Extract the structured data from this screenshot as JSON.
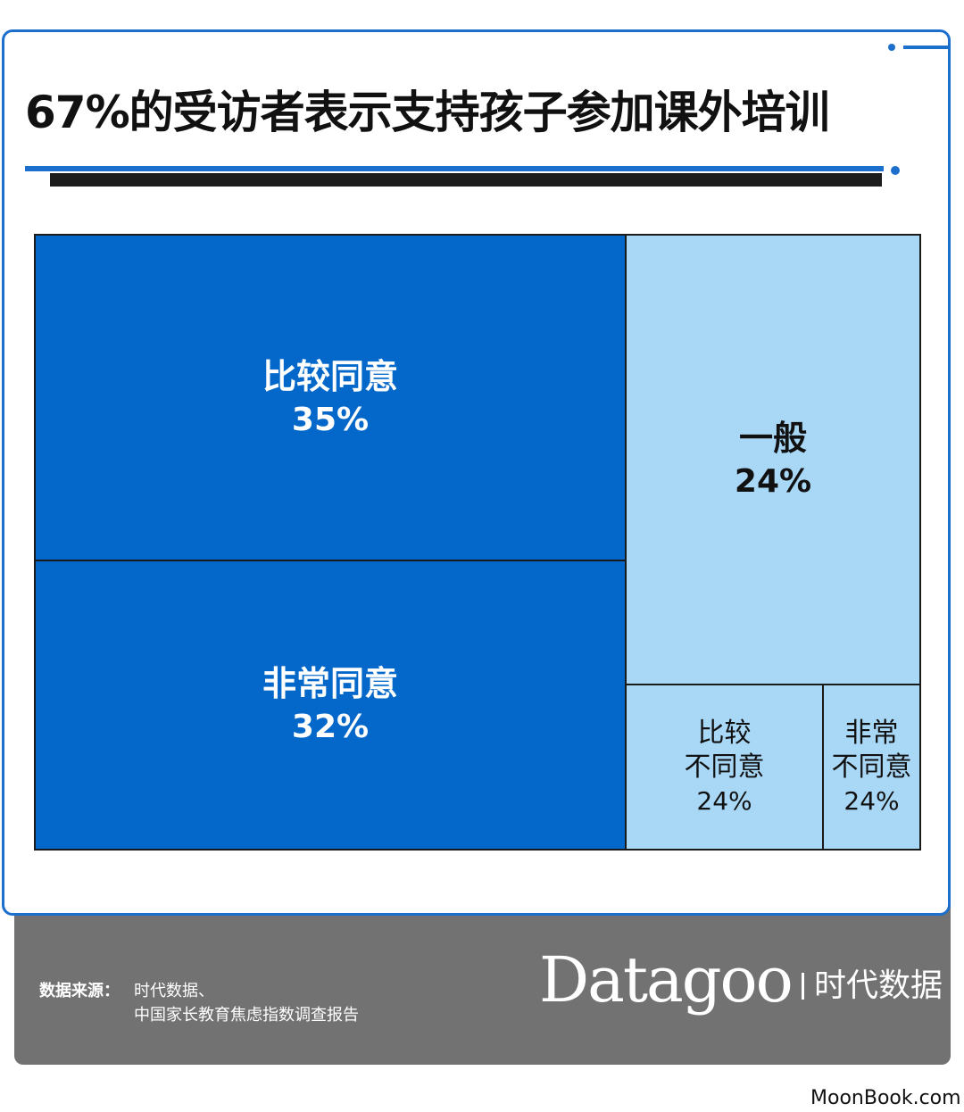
{
  "title": "67%的受访者表示支持孩子参加课外培训",
  "chart_data": {
    "type": "treemap",
    "title": "67%的受访者表示支持孩子参加课外培训",
    "unit": "%",
    "items": [
      {
        "label": "比较同意",
        "value": 35,
        "display": "35%"
      },
      {
        "label": "非常同意",
        "value": 32,
        "display": "32%"
      },
      {
        "label": "一般",
        "value": 24,
        "display": "24%"
      },
      {
        "label_line1": "比较",
        "label_line2": "不同意",
        "label": "比较不同意",
        "value": 24,
        "display": "24%"
      },
      {
        "label_line1": "非常",
        "label_line2": "不同意",
        "label": "非常不同意",
        "value": 24,
        "display": "24%"
      }
    ],
    "colors": {
      "agree": "#0368c9",
      "other": "#a9d8f7"
    }
  },
  "footer": {
    "source_label": "数据来源：",
    "source_line1": "时代数据、",
    "source_line2": "中国家长教育焦虑指数调查报告",
    "brand_name": "Datagoo",
    "brand_cn": "时代数据"
  },
  "watermark": "MoonBook.com"
}
